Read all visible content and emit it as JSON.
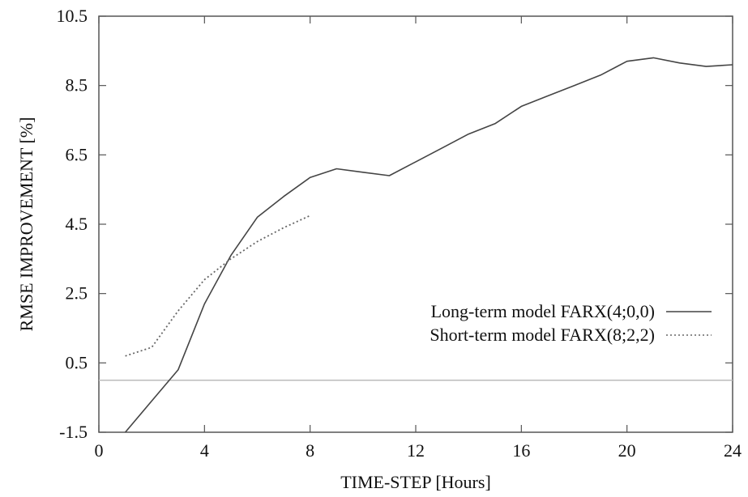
{
  "chart_data": {
    "type": "line",
    "title": "",
    "xlabel": "TIME-STEP [Hours]",
    "ylabel": "RMSE IMPROVEMENT [%]",
    "xlim": [
      0,
      24
    ],
    "ylim": [
      -1.5,
      10.5
    ],
    "xticks": [
      0,
      4,
      8,
      12,
      16,
      20,
      24
    ],
    "yticks": [
      -1.5,
      0.5,
      2.5,
      4.5,
      6.5,
      8.5,
      10.5
    ],
    "xtick_labels": [
      "0",
      "4",
      "8",
      "12",
      "16",
      "20",
      "24"
    ],
    "ytick_labels": [
      "-1.5",
      "0.5",
      "2.5",
      "4.5",
      "6.5",
      "8.5",
      "10.5"
    ],
    "grid": false,
    "legend_position": "right",
    "reference_line": {
      "y": 0,
      "color": "#bbbbbb"
    },
    "series": [
      {
        "name": "Long-term model FARX(4;0,0)",
        "style": "solid",
        "color": "#444444",
        "x": [
          1,
          2,
          3,
          4,
          5,
          6,
          7,
          8,
          9,
          10,
          11,
          12,
          13,
          14,
          15,
          16,
          17,
          18,
          19,
          20,
          21,
          22,
          23,
          24
        ],
        "y": [
          -1.5,
          -0.6,
          0.3,
          2.2,
          3.6,
          4.7,
          5.3,
          5.85,
          6.1,
          6.0,
          5.9,
          6.3,
          6.7,
          7.1,
          7.4,
          7.9,
          8.2,
          8.5,
          8.8,
          9.2,
          9.3,
          9.15,
          9.05,
          9.1
        ]
      },
      {
        "name": "Short-term model FARX(8;2,2)",
        "style": "dotted",
        "color": "#666666",
        "x": [
          1,
          2,
          3,
          4,
          5,
          6,
          7,
          8
        ],
        "y": [
          0.7,
          0.95,
          2.0,
          2.9,
          3.5,
          4.0,
          4.4,
          4.75
        ]
      }
    ]
  }
}
